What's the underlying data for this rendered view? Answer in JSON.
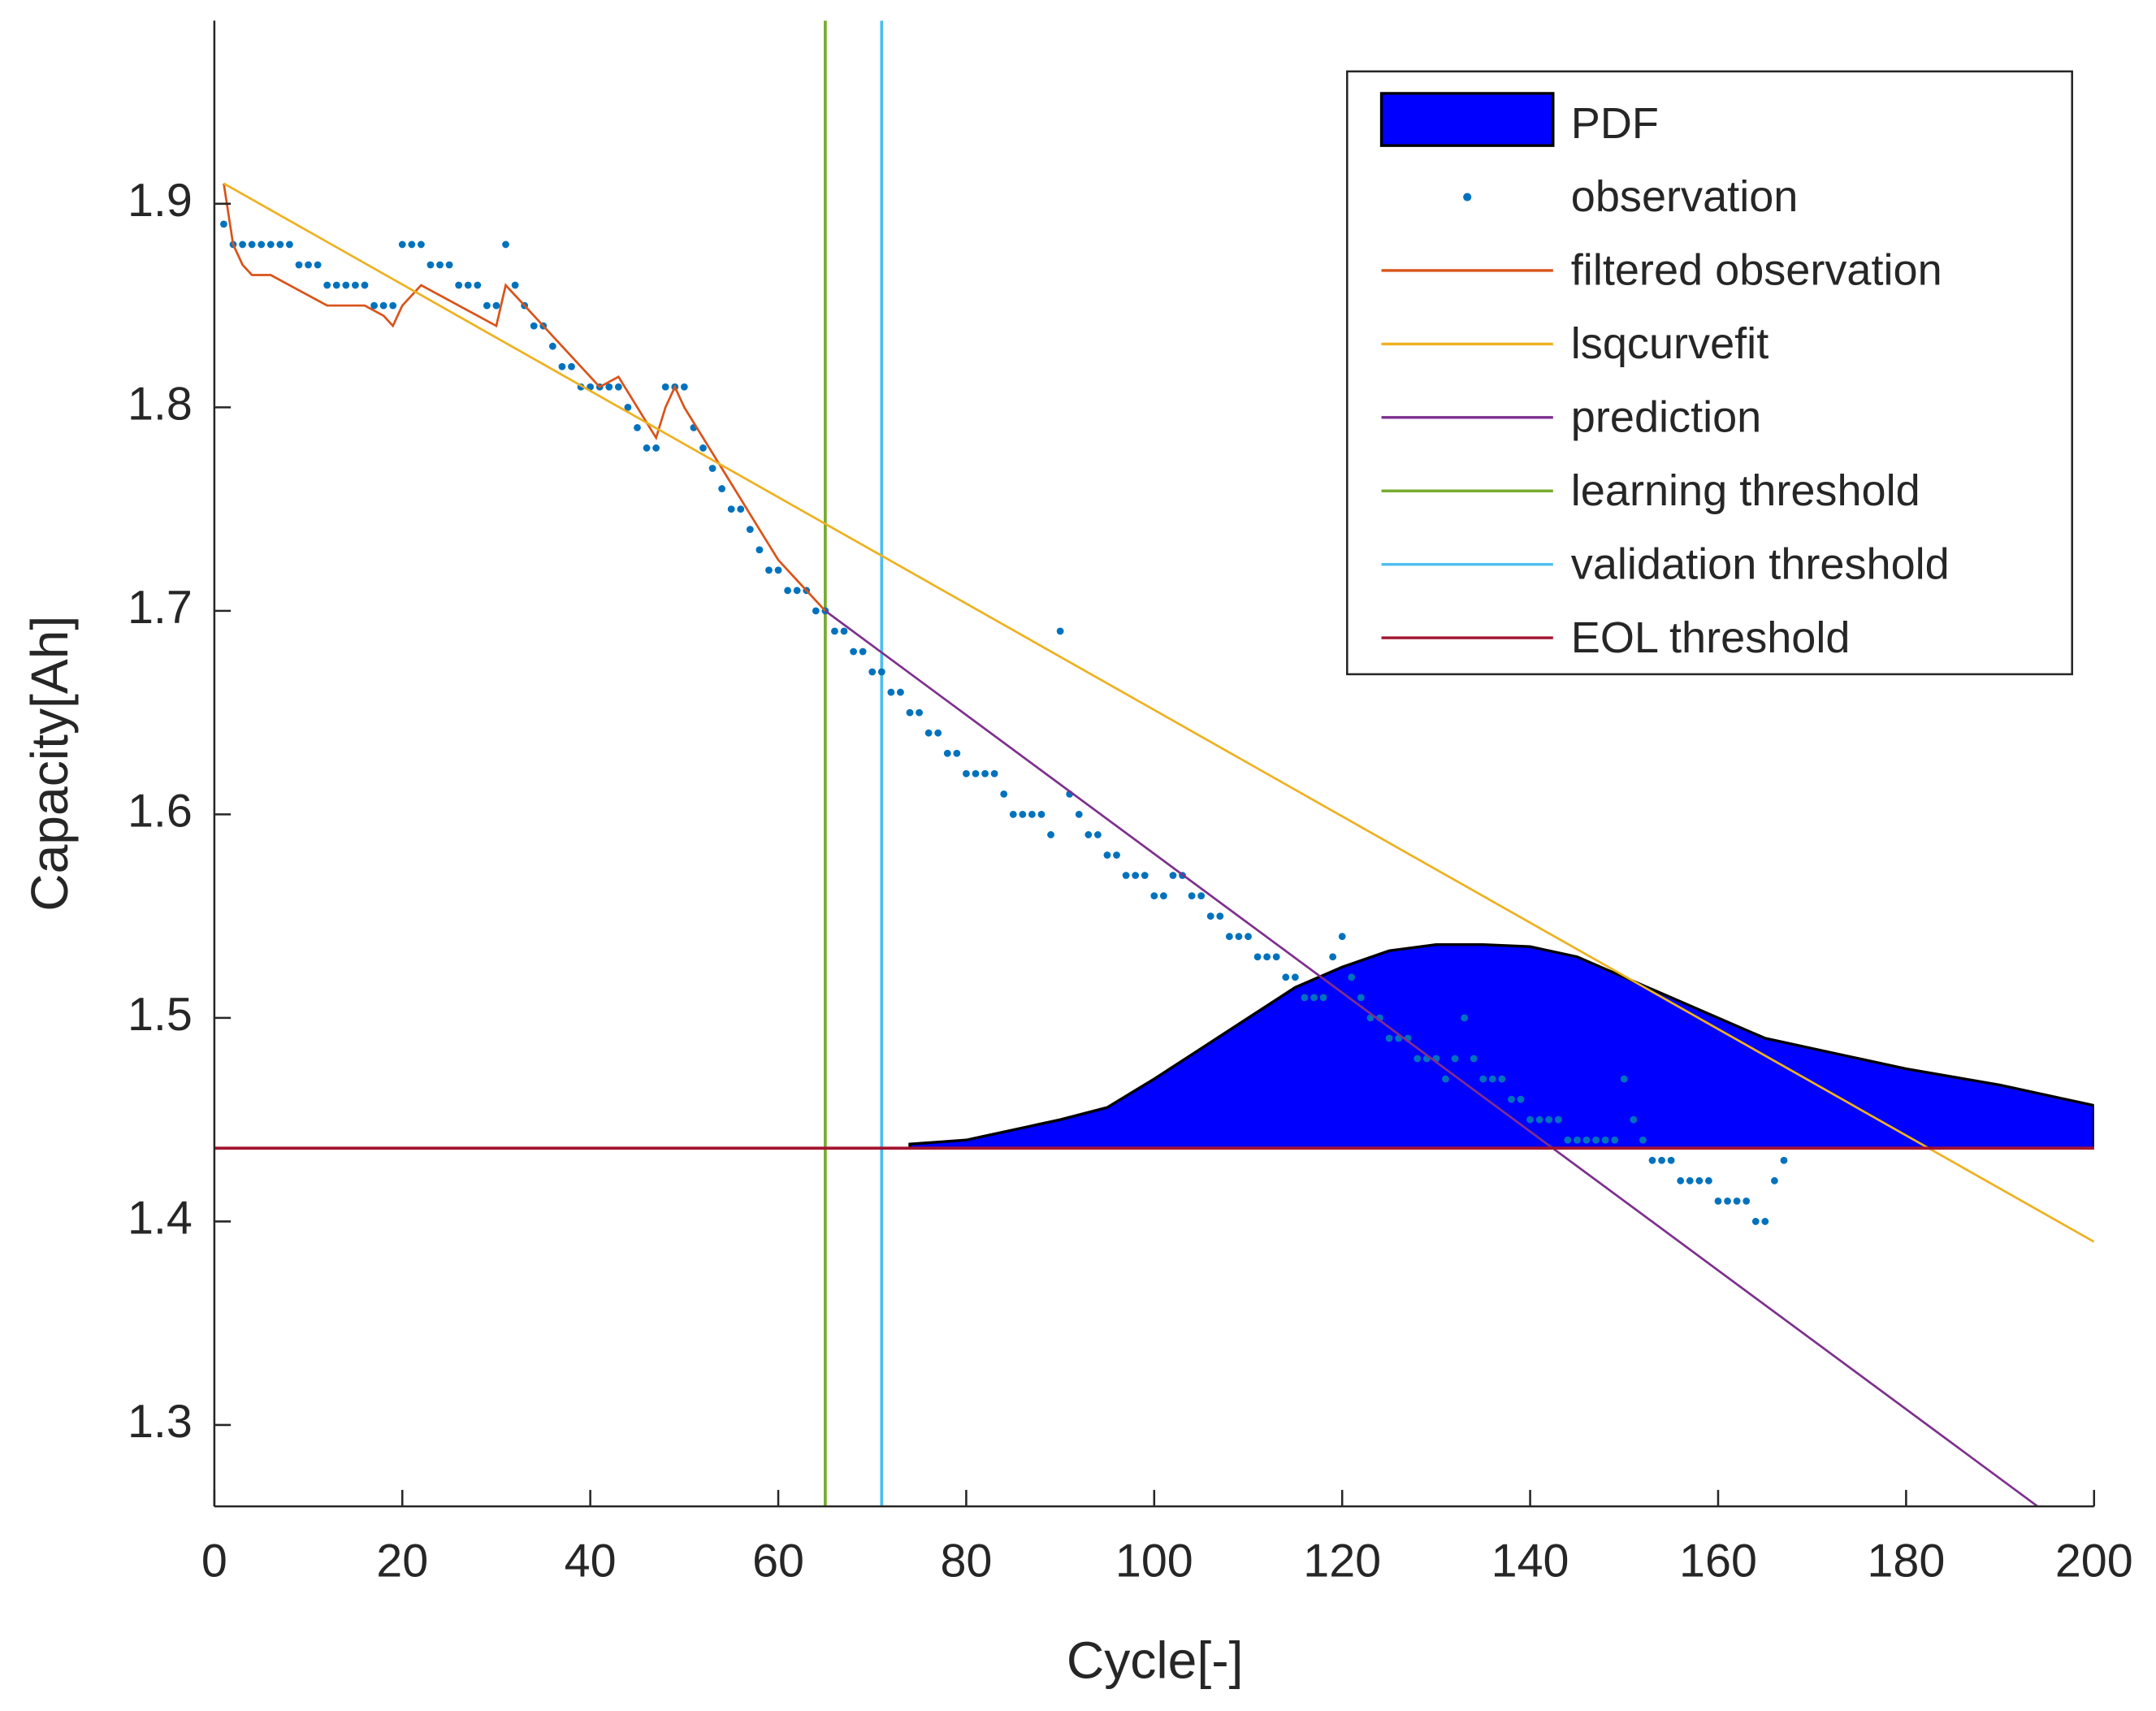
{
  "chart_data": {
    "type": "line",
    "x_label": "Cycle[-]",
    "y_label": "Capacity[Ah]",
    "xlim": [
      0,
      200
    ],
    "ylim": [
      1.26,
      1.99
    ],
    "xticks": [
      0,
      20,
      40,
      60,
      80,
      100,
      120,
      140,
      160,
      180,
      200
    ],
    "yticks": [
      1.3,
      1.4,
      1.5,
      1.6,
      1.7,
      1.8,
      1.9
    ],
    "legend": "upper right",
    "series": [
      {
        "name": "PDF",
        "style": "area",
        "color": "#0000ff",
        "x": [
          74,
          80,
          90,
          95,
          100,
          105,
          110,
          115,
          120,
          125,
          130,
          135,
          140,
          145,
          150,
          155,
          160,
          165,
          170,
          180,
          190,
          200
        ],
        "values": [
          1.438,
          1.44,
          1.45,
          1.456,
          1.47,
          1.485,
          1.5,
          1.515,
          1.525,
          1.533,
          1.536,
          1.536,
          1.535,
          1.53,
          1.52,
          1.51,
          1.5,
          1.49,
          1.485,
          1.475,
          1.467,
          1.457
        ]
      },
      {
        "name": "observation",
        "style": "scatter",
        "color": "#0072bd",
        "x": [
          1,
          2,
          3,
          4,
          5,
          6,
          7,
          8,
          9,
          10,
          11,
          12,
          13,
          14,
          15,
          16,
          17,
          18,
          19,
          20,
          21,
          22,
          23,
          24,
          25,
          26,
          27,
          28,
          29,
          30,
          31,
          32,
          33,
          34,
          35,
          36,
          37,
          38,
          39,
          40,
          41,
          42,
          43,
          44,
          45,
          46,
          47,
          48,
          49,
          50,
          51,
          52,
          53,
          54,
          55,
          56,
          57,
          58,
          59,
          60,
          61,
          62,
          63,
          64,
          65,
          66,
          67,
          68,
          69,
          70,
          71,
          72,
          73,
          74,
          75,
          76,
          77,
          78,
          79,
          80,
          81,
          82,
          83,
          84,
          85,
          86,
          87,
          88,
          89,
          90,
          91,
          92,
          93,
          94,
          95,
          96,
          97,
          98,
          99,
          100,
          101,
          102,
          103,
          104,
          105,
          106,
          107,
          108,
          109,
          110,
          111,
          112,
          113,
          114,
          115,
          116,
          117,
          118,
          119,
          120,
          121,
          122,
          123,
          124,
          125,
          126,
          127,
          128,
          129,
          130,
          131,
          132,
          133,
          134,
          135,
          136,
          137,
          138,
          139,
          140,
          141,
          142,
          143,
          144,
          145,
          146,
          147,
          148,
          149,
          150,
          151,
          152,
          153,
          154,
          155,
          156,
          157,
          158,
          159,
          160,
          161,
          162,
          163,
          164,
          165,
          166,
          167
        ],
        "values": [
          1.89,
          1.88,
          1.88,
          1.88,
          1.88,
          1.88,
          1.88,
          1.88,
          1.87,
          1.87,
          1.87,
          1.86,
          1.86,
          1.86,
          1.86,
          1.86,
          1.85,
          1.85,
          1.85,
          1.88,
          1.88,
          1.88,
          1.87,
          1.87,
          1.87,
          1.86,
          1.86,
          1.86,
          1.85,
          1.85,
          1.88,
          1.86,
          1.85,
          1.84,
          1.84,
          1.83,
          1.82,
          1.82,
          1.81,
          1.81,
          1.81,
          1.81,
          1.81,
          1.8,
          1.79,
          1.78,
          1.78,
          1.81,
          1.81,
          1.81,
          1.79,
          1.78,
          1.77,
          1.76,
          1.75,
          1.75,
          1.74,
          1.73,
          1.72,
          1.72,
          1.71,
          1.71,
          1.71,
          1.7,
          1.7,
          1.69,
          1.69,
          1.68,
          1.68,
          1.67,
          1.67,
          1.66,
          1.66,
          1.65,
          1.65,
          1.64,
          1.64,
          1.63,
          1.63,
          1.62,
          1.62,
          1.62,
          1.62,
          1.61,
          1.6,
          1.6,
          1.6,
          1.6,
          1.59,
          1.69,
          1.61,
          1.6,
          1.59,
          1.59,
          1.58,
          1.58,
          1.57,
          1.57,
          1.57,
          1.56,
          1.56,
          1.57,
          1.57,
          1.56,
          1.56,
          1.55,
          1.55,
          1.54,
          1.54,
          1.54,
          1.53,
          1.53,
          1.53,
          1.52,
          1.52,
          1.51,
          1.51,
          1.51,
          1.53,
          1.54,
          1.52,
          1.51,
          1.5,
          1.5,
          1.49,
          1.49,
          1.49,
          1.48,
          1.48,
          1.48,
          1.47,
          1.48,
          1.5,
          1.48,
          1.47,
          1.47,
          1.47,
          1.46,
          1.46,
          1.45,
          1.45,
          1.45,
          1.45,
          1.44,
          1.44,
          1.44,
          1.44,
          1.44,
          1.44,
          1.47,
          1.45,
          1.44,
          1.43,
          1.43,
          1.43,
          1.42,
          1.42,
          1.42,
          1.42,
          1.41,
          1.41,
          1.41,
          1.41,
          1.4,
          1.4,
          1.42,
          1.43
        ]
      },
      {
        "name": "filtered observation",
        "style": "line",
        "color": "#d95319",
        "x": [
          1,
          2,
          3,
          4,
          6,
          8,
          10,
          12,
          16,
          18,
          19,
          20,
          22,
          24,
          26,
          28,
          30,
          31,
          33,
          35,
          37,
          39,
          41,
          43,
          45,
          47,
          48,
          49,
          50,
          52,
          54,
          56,
          58,
          60,
          62,
          64,
          65
        ],
        "values": [
          1.91,
          1.88,
          1.87,
          1.865,
          1.865,
          1.86,
          1.855,
          1.85,
          1.85,
          1.845,
          1.84,
          1.85,
          1.86,
          1.855,
          1.85,
          1.845,
          1.84,
          1.86,
          1.85,
          1.84,
          1.83,
          1.82,
          1.81,
          1.815,
          1.8,
          1.785,
          1.8,
          1.81,
          1.8,
          1.785,
          1.77,
          1.755,
          1.74,
          1.725,
          1.715,
          1.705,
          1.7
        ]
      },
      {
        "name": "lsqcurvefit",
        "style": "line",
        "color": "#edb120",
        "x": [
          1,
          200
        ],
        "values": [
          1.91,
          1.39
        ]
      },
      {
        "name": "prediction",
        "style": "line",
        "color": "#7e2f8e",
        "x": [
          65,
          194
        ],
        "values": [
          1.7,
          1.26
        ]
      },
      {
        "name": "learning threshold",
        "style": "vline",
        "color": "#77ac30",
        "x_value": 65
      },
      {
        "name": "validation threshold",
        "style": "vline",
        "color": "#4dbeee",
        "x_value": 71
      },
      {
        "name": "EOL threshold",
        "style": "hline",
        "color": "#a2142f",
        "y_value": 1.436
      }
    ]
  }
}
